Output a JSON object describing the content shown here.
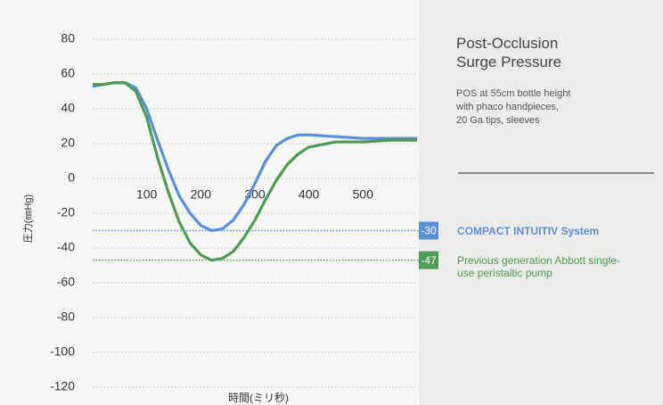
{
  "chart_data": {
    "type": "line",
    "title_lines": [
      "Post-Occlusion",
      "Surge Pressure"
    ],
    "subtitle_lines": [
      "POS at 55cm bottle height",
      "with phaco handpieces,",
      "20 Ga tips, sleeves"
    ],
    "ylabel": "圧力(㎜Hg)",
    "xlabel": "時間(ミリ秒)",
    "xlim": [
      0,
      600
    ],
    "xticks": [
      100,
      200,
      300,
      400,
      500
    ],
    "ylim": [
      -120,
      80
    ],
    "yticks": [
      -120,
      -100,
      -80,
      -60,
      -40,
      -20,
      0,
      20,
      40,
      60,
      80
    ],
    "grid": true,
    "x": [
      0,
      20,
      40,
      60,
      80,
      100,
      120,
      140,
      160,
      180,
      200,
      220,
      240,
      260,
      280,
      300,
      320,
      340,
      360,
      380,
      400,
      450,
      500,
      550,
      600
    ],
    "series": [
      {
        "name": "COMPACT INTUITIV System",
        "color": "#5b8fd6",
        "values": [
          53,
          54,
          55,
          55,
          52,
          40,
          22,
          5,
          -10,
          -20,
          -27,
          -30,
          -29,
          -24,
          -15,
          -3,
          10,
          19,
          23,
          25,
          25,
          24,
          23,
          23,
          23
        ]
      },
      {
        "name": "Previous generation Abbott single-use peristaltic pump",
        "color": "#4f9a55",
        "values": [
          54,
          54,
          55,
          55,
          50,
          35,
          12,
          -8,
          -25,
          -37,
          -44,
          -47,
          -46,
          -42,
          -34,
          -24,
          -12,
          -1,
          8,
          14,
          18,
          21,
          21,
          22,
          22
        ]
      }
    ],
    "annotations": [
      {
        "value": -30,
        "color": "#5b8fd6"
      },
      {
        "value": -47,
        "color": "#4f9a55"
      }
    ]
  }
}
